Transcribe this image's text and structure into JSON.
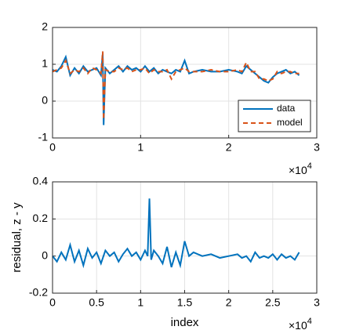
{
  "chart_data": [
    {
      "type": "line",
      "x": [
        0,
        0.05,
        0.1,
        0.15,
        0.2,
        0.25,
        0.3,
        0.35,
        0.4,
        0.45,
        0.5,
        0.55,
        0.57,
        0.58,
        0.6,
        0.65,
        0.7,
        0.75,
        0.8,
        0.85,
        0.9,
        0.95,
        1.0,
        1.05,
        1.1,
        1.15,
        1.2,
        1.25,
        1.3,
        1.35,
        1.4,
        1.45,
        1.5,
        1.55,
        1.6,
        1.7,
        1.8,
        1.9,
        2.0,
        2.1,
        2.15,
        2.2,
        2.25,
        2.3,
        2.35,
        2.4,
        2.45,
        2.5,
        2.55,
        2.6,
        2.65,
        2.7,
        2.75,
        2.8
      ],
      "series": [
        {
          "name": "data",
          "color": "#0072bd",
          "line_style": "solid",
          "values": [
            0.85,
            0.8,
            0.95,
            1.2,
            0.7,
            0.9,
            0.75,
            0.95,
            0.8,
            0.85,
            0.9,
            0.7,
            1.3,
            -0.65,
            0.9,
            0.75,
            0.85,
            0.95,
            0.8,
            0.95,
            0.85,
            0.9,
            0.8,
            0.95,
            0.8,
            0.9,
            0.75,
            0.85,
            0.8,
            0.75,
            0.85,
            0.8,
            1.1,
            0.75,
            0.8,
            0.85,
            0.8,
            0.8,
            0.85,
            0.8,
            0.75,
            0.95,
            0.85,
            0.75,
            0.65,
            0.55,
            0.5,
            0.65,
            0.75,
            0.8,
            0.85,
            0.75,
            0.8,
            0.7
          ]
        },
        {
          "name": "model",
          "color": "#d95319",
          "line_style": "dashed",
          "values": [
            0.8,
            0.85,
            0.9,
            1.1,
            0.75,
            0.85,
            0.8,
            0.9,
            0.75,
            0.9,
            0.85,
            0.75,
            1.35,
            -0.5,
            0.85,
            0.8,
            0.8,
            0.9,
            0.85,
            0.9,
            0.8,
            0.85,
            0.85,
            0.9,
            0.75,
            0.85,
            0.8,
            0.8,
            0.85,
            0.6,
            0.8,
            0.85,
            0.9,
            0.8,
            0.8,
            0.8,
            0.85,
            0.8,
            0.8,
            0.85,
            0.8,
            1.05,
            0.8,
            0.8,
            0.6,
            0.6,
            0.55,
            0.6,
            0.8,
            0.75,
            0.8,
            0.8,
            0.75,
            0.75
          ]
        }
      ],
      "xlim": [
        0,
        3
      ],
      "xticks": [
        0,
        1,
        2,
        3
      ],
      "ylim": [
        -1,
        2
      ],
      "yticks": [
        -1,
        0,
        1,
        2
      ],
      "x_scale_label": "×10",
      "x_scale_exponent": "4",
      "grid": true,
      "legend": "lower right"
    },
    {
      "type": "line",
      "x": [
        0,
        0.05,
        0.1,
        0.15,
        0.2,
        0.25,
        0.3,
        0.35,
        0.4,
        0.45,
        0.5,
        0.55,
        0.6,
        0.65,
        0.7,
        0.75,
        0.8,
        0.85,
        0.9,
        0.95,
        1.0,
        1.05,
        1.08,
        1.1,
        1.12,
        1.15,
        1.2,
        1.25,
        1.3,
        1.35,
        1.4,
        1.45,
        1.5,
        1.55,
        1.6,
        1.7,
        1.8,
        1.9,
        2.0,
        2.1,
        2.15,
        2.2,
        2.25,
        2.3,
        2.35,
        2.4,
        2.45,
        2.5,
        2.55,
        2.6,
        2.65,
        2.7,
        2.75,
        2.8
      ],
      "series": [
        {
          "name": "residual",
          "color": "#0072bd",
          "line_style": "solid",
          "values": [
            0.0,
            -0.03,
            0.02,
            -0.02,
            0.06,
            -0.03,
            0.03,
            -0.05,
            0.04,
            -0.01,
            0.02,
            -0.04,
            0.03,
            0.0,
            0.02,
            -0.03,
            0.01,
            0.04,
            0.0,
            0.02,
            -0.02,
            0.03,
            0.0,
            0.31,
            -0.02,
            0.03,
            0.0,
            -0.04,
            0.05,
            -0.06,
            0.02,
            -0.05,
            0.08,
            0.0,
            0.02,
            0.0,
            0.01,
            -0.01,
            0.0,
            0.01,
            -0.01,
            0.0,
            -0.03,
            0.02,
            -0.01,
            0.0,
            -0.01,
            0.01,
            -0.02,
            0.01,
            -0.01,
            0.0,
            -0.02,
            0.02
          ]
        }
      ],
      "xlim": [
        0,
        3
      ],
      "xticks": [
        0,
        0.5,
        1,
        1.5,
        2,
        2.5,
        3
      ],
      "ylim": [
        -0.2,
        0.4
      ],
      "yticks": [
        -0.2,
        0,
        0.2,
        0.4
      ],
      "xlabel": "index",
      "ylabel": "residual, z - y",
      "x_scale_label": "×10",
      "x_scale_exponent": "4",
      "grid": true
    }
  ]
}
